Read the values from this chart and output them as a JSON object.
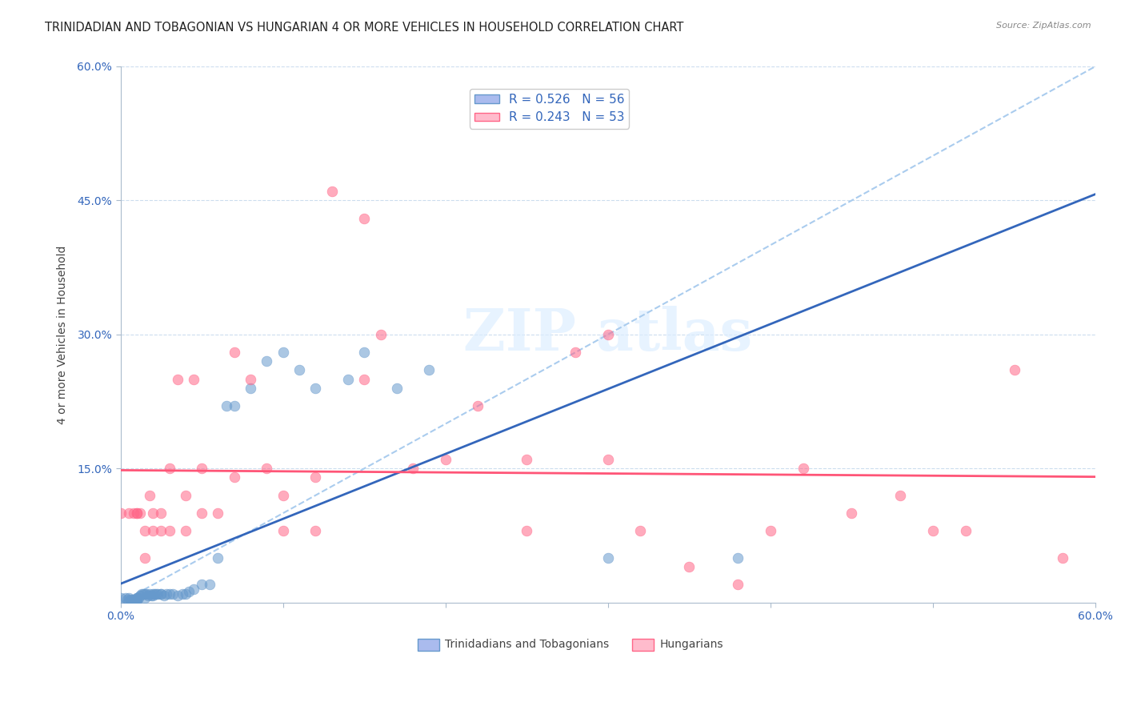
{
  "title": "TRINIDADIAN AND TOBAGONIAN VS HUNGARIAN 4 OR MORE VEHICLES IN HOUSEHOLD CORRELATION CHART",
  "source": "Source: ZipAtlas.com",
  "ylabel": "4 or more Vehicles in Household",
  "xlim": [
    0.0,
    0.6
  ],
  "ylim": [
    0.0,
    0.6
  ],
  "ytick_vals": [
    0.15,
    0.3,
    0.45,
    0.6
  ],
  "ytick_labels": [
    "15.0%",
    "30.0%",
    "45.0%",
    "60.0%"
  ],
  "xtick_vals": [
    0.0,
    0.1,
    0.2,
    0.3,
    0.4,
    0.5,
    0.6
  ],
  "xtick_labels": [
    "0.0%",
    "",
    "",
    "",
    "",
    "",
    "60.0%"
  ],
  "legend_label1": "Trinidadians and Tobagonians",
  "legend_label2": "Hungarians",
  "color_blue": "#6699CC",
  "color_pink": "#FF6688",
  "color_diag": "#AACCEE",
  "R1": 0.526,
  "N1": 56,
  "R2": 0.243,
  "N2": 53,
  "tri_x": [
    0.0,
    0.003,
    0.004,
    0.005,
    0.005,
    0.006,
    0.007,
    0.007,
    0.008,
    0.009,
    0.01,
    0.01,
    0.01,
    0.01,
    0.011,
    0.012,
    0.013,
    0.014,
    0.015,
    0.015,
    0.016,
    0.017,
    0.018,
    0.019,
    0.02,
    0.02,
    0.021,
    0.022,
    0.023,
    0.025,
    0.025,
    0.027,
    0.028,
    0.03,
    0.032,
    0.035,
    0.038,
    0.04,
    0.042,
    0.045,
    0.05,
    0.055,
    0.06,
    0.065,
    0.07,
    0.08,
    0.09,
    0.1,
    0.11,
    0.12,
    0.14,
    0.15,
    0.17,
    0.19,
    0.3,
    0.38
  ],
  "tri_y": [
    0.005,
    0.005,
    0.003,
    0.005,
    0.002,
    0.003,
    0.003,
    0.002,
    0.003,
    0.003,
    0.005,
    0.005,
    0.003,
    0.002,
    0.005,
    0.008,
    0.01,
    0.01,
    0.01,
    0.005,
    0.01,
    0.008,
    0.01,
    0.008,
    0.01,
    0.008,
    0.01,
    0.01,
    0.01,
    0.01,
    0.01,
    0.008,
    0.01,
    0.01,
    0.01,
    0.008,
    0.01,
    0.01,
    0.012,
    0.015,
    0.02,
    0.02,
    0.05,
    0.22,
    0.22,
    0.24,
    0.27,
    0.28,
    0.26,
    0.24,
    0.25,
    0.28,
    0.24,
    0.26,
    0.05,
    0.05
  ],
  "hun_x": [
    0.0,
    0.005,
    0.008,
    0.01,
    0.01,
    0.012,
    0.015,
    0.015,
    0.018,
    0.02,
    0.02,
    0.025,
    0.025,
    0.03,
    0.03,
    0.035,
    0.04,
    0.04,
    0.045,
    0.05,
    0.05,
    0.06,
    0.07,
    0.07,
    0.08,
    0.09,
    0.1,
    0.1,
    0.12,
    0.12,
    0.13,
    0.15,
    0.15,
    0.16,
    0.18,
    0.2,
    0.22,
    0.25,
    0.25,
    0.28,
    0.3,
    0.3,
    0.32,
    0.35,
    0.38,
    0.4,
    0.42,
    0.45,
    0.48,
    0.5,
    0.52,
    0.55,
    0.58
  ],
  "hun_y": [
    0.1,
    0.1,
    0.1,
    0.1,
    0.1,
    0.1,
    0.05,
    0.08,
    0.12,
    0.08,
    0.1,
    0.08,
    0.1,
    0.08,
    0.15,
    0.25,
    0.08,
    0.12,
    0.25,
    0.1,
    0.15,
    0.1,
    0.14,
    0.28,
    0.25,
    0.15,
    0.08,
    0.12,
    0.08,
    0.14,
    0.46,
    0.25,
    0.43,
    0.3,
    0.15,
    0.16,
    0.22,
    0.16,
    0.08,
    0.28,
    0.16,
    0.3,
    0.08,
    0.04,
    0.02,
    0.08,
    0.15,
    0.1,
    0.12,
    0.08,
    0.08,
    0.26,
    0.05
  ]
}
